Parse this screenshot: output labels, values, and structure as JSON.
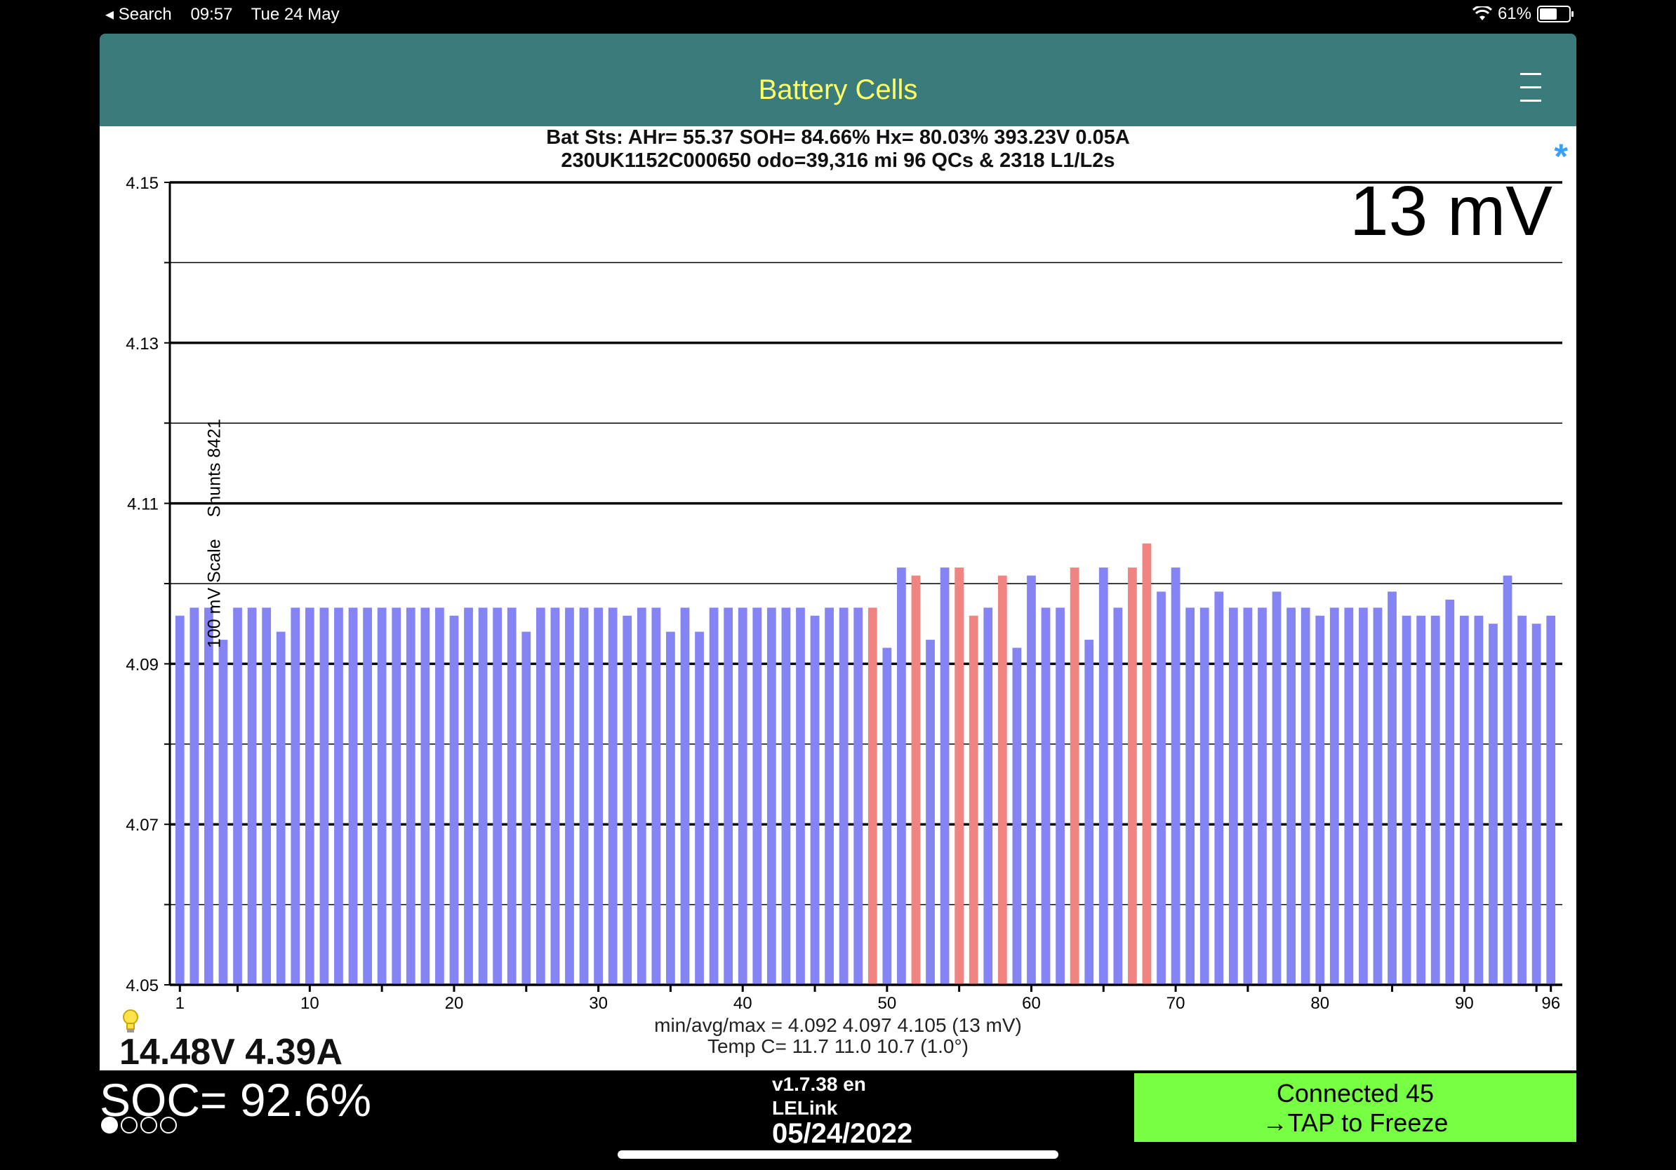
{
  "status_bar": {
    "back_label": "Search",
    "time": "09:57",
    "date": "Tue 24 May",
    "battery_percent_label": "61%",
    "battery_level": 0.61
  },
  "header": {
    "title": "Battery Cells"
  },
  "summary": {
    "line1": "Bat Sts:  AHr= 55.37  SOH= 84.66%   Hx= 80.03%   393.23V 0.05A",
    "line2": "230UK1152C000650 odo=39,316 mi  96 QCs & 2318 L1/L2s",
    "spread_big": "13 mV",
    "bt_icon": "bluetooth-asterisk-icon"
  },
  "y_axis": {
    "scale_label": "100 mV Scale",
    "shunts_label": "Shunts 8421"
  },
  "stats": {
    "minavgmax": "min/avg/max = 4.092 4.097 4.105  (13 mV)",
    "temp": "Temp C= 11.7  11.0  10.7  (1.0°)"
  },
  "power_readout": "14.48V 4.39A",
  "soc": "SOC= 92.6%",
  "page_dots": {
    "count": 4,
    "active": 0
  },
  "app_info": {
    "version": "v1.7.38 en",
    "device": "LELink",
    "date": "05/24/2022"
  },
  "connect_button": {
    "line1": "Connected 45",
    "line2": "→TAP to Freeze"
  },
  "colors": {
    "normal_bar": "#8484f4",
    "shunted_bar": "#f08480",
    "header_bg": "#3a7c7c",
    "title": "#ffff66",
    "button": "#77ff44"
  },
  "chart_data": {
    "type": "bar",
    "ylim": [
      4.05,
      4.15
    ],
    "ytick_labels": [
      "4.05",
      "4.07",
      "4.09",
      "4.11",
      "4.13",
      "4.15"
    ],
    "xtick_labels": [
      "1",
      "10",
      "20",
      "30",
      "40",
      "50",
      "60",
      "70",
      "80",
      "90",
      "96"
    ],
    "x": [
      1,
      2,
      3,
      4,
      5,
      6,
      7,
      8,
      9,
      10,
      11,
      12,
      13,
      14,
      15,
      16,
      17,
      18,
      19,
      20,
      21,
      22,
      23,
      24,
      25,
      26,
      27,
      28,
      29,
      30,
      31,
      32,
      33,
      34,
      35,
      36,
      37,
      38,
      39,
      40,
      41,
      42,
      43,
      44,
      45,
      46,
      47,
      48,
      49,
      50,
      51,
      52,
      53,
      54,
      55,
      56,
      57,
      58,
      59,
      60,
      61,
      62,
      63,
      64,
      65,
      66,
      67,
      68,
      69,
      70,
      71,
      72,
      73,
      74,
      75,
      76,
      77,
      78,
      79,
      80,
      81,
      82,
      83,
      84,
      85,
      86,
      87,
      88,
      89,
      90,
      91,
      92,
      93,
      94,
      95,
      96
    ],
    "values": [
      4.096,
      4.097,
      4.097,
      4.093,
      4.097,
      4.097,
      4.097,
      4.094,
      4.097,
      4.097,
      4.097,
      4.097,
      4.097,
      4.097,
      4.097,
      4.097,
      4.097,
      4.097,
      4.097,
      4.096,
      4.097,
      4.097,
      4.097,
      4.097,
      4.094,
      4.097,
      4.097,
      4.097,
      4.097,
      4.097,
      4.097,
      4.096,
      4.097,
      4.097,
      4.094,
      4.097,
      4.094,
      4.097,
      4.097,
      4.097,
      4.097,
      4.097,
      4.097,
      4.097,
      4.096,
      4.097,
      4.097,
      4.097,
      4.097,
      4.092,
      4.102,
      4.101,
      4.093,
      4.102,
      4.102,
      4.096,
      4.097,
      4.101,
      4.092,
      4.101,
      4.097,
      4.097,
      4.102,
      4.093,
      4.102,
      4.097,
      4.102,
      4.105,
      4.099,
      4.102,
      4.097,
      4.097,
      4.099,
      4.097,
      4.097,
      4.097,
      4.099,
      4.097,
      4.097,
      4.096,
      4.097,
      4.097,
      4.097,
      4.097,
      4.099,
      4.096,
      4.096,
      4.096,
      4.098,
      4.096,
      4.096,
      4.095,
      4.101,
      4.096,
      4.095,
      4.096
    ],
    "shunted_cells": [
      49,
      52,
      55,
      56,
      58,
      63,
      67,
      68
    ]
  }
}
